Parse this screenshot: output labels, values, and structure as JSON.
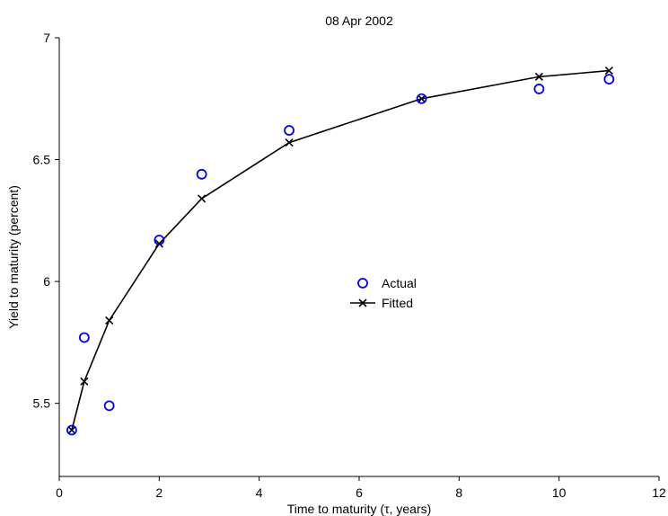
{
  "chart_data": {
    "type": "scatter",
    "title": "08 Apr 2002",
    "xlabel": "Time to maturity (τ, years)",
    "ylabel": "Yield to maturity (percent)",
    "xlim": [
      0,
      12
    ],
    "ylim": [
      5.2,
      7
    ],
    "xticks": [
      "0",
      "2",
      "4",
      "6",
      "8",
      "10",
      "12"
    ],
    "yticks": [
      "5.5",
      "6",
      "6.5",
      "7"
    ],
    "grid": false,
    "legend_position": "center",
    "series": [
      {
        "name": "Actual",
        "style": "circles",
        "color": "#0000ff",
        "x": [
          0.25,
          0.5,
          1.0,
          2.0,
          2.85,
          4.6,
          7.25,
          9.6,
          11.0
        ],
        "y": [
          5.39,
          5.77,
          5.49,
          6.17,
          6.44,
          6.62,
          6.75,
          6.79,
          6.83
        ]
      },
      {
        "name": "Fitted",
        "style": "line-x-markers",
        "color": "#000000",
        "x": [
          0.25,
          0.5,
          1.0,
          2.0,
          2.85,
          4.6,
          7.25,
          9.6,
          11.0
        ],
        "y": [
          5.39,
          5.59,
          5.84,
          6.155,
          6.34,
          6.57,
          6.75,
          6.84,
          6.865
        ]
      }
    ]
  }
}
